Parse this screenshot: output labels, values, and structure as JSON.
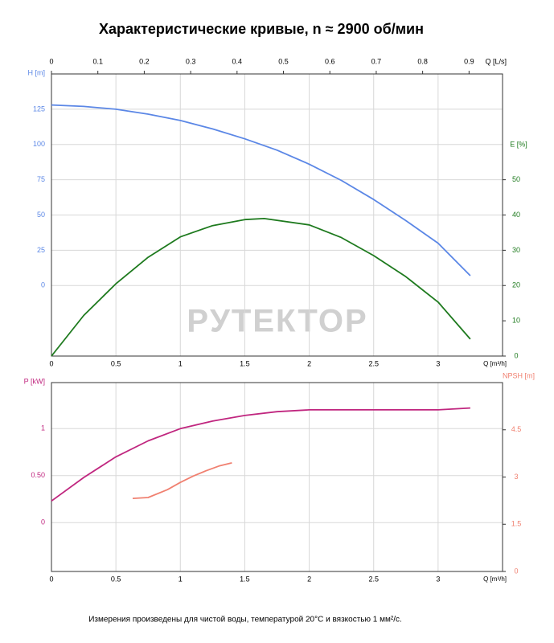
{
  "title": "Характеристические кривые, n ≈ 2900 об/мин",
  "watermark": "PУТЕКТОР",
  "footnote": "Измерения произведены для чистой воды, температурой 20°C и вязкостью 1 мм²/с.",
  "chart_data": [
    {
      "type": "line",
      "x_label": "Q [m³/h]",
      "xlim": [
        0,
        3.5
      ],
      "xticks": [
        0,
        0.5,
        1,
        1.5,
        2,
        2.5,
        3
      ],
      "x2_label": "Q [L/s]",
      "x2lim": [
        0,
        0.9722
      ],
      "x2ticks": [
        0,
        0.1,
        0.2,
        0.3,
        0.4,
        0.5,
        0.6,
        0.7,
        0.8,
        0.9
      ],
      "y_label": "H [m]",
      "ylim": [
        -50,
        150
      ],
      "yticks": [
        0,
        25,
        50,
        75,
        100,
        125
      ],
      "y2_label": "E [%]",
      "y2lim": [
        0,
        80
      ],
      "y2ticks": [
        0,
        10,
        20,
        30,
        40,
        50
      ],
      "grid": true,
      "series": [
        {
          "name": "H",
          "color": "#5b87e6",
          "axis": "y",
          "x": [
            0,
            0.25,
            0.5,
            0.75,
            1,
            1.25,
            1.5,
            1.75,
            2,
            2.25,
            2.5,
            2.75,
            3,
            3.25
          ],
          "values": [
            128,
            127,
            125,
            121.5,
            117,
            111,
            104,
            96,
            86,
            74.5,
            61,
            46,
            30,
            7
          ]
        },
        {
          "name": "E",
          "color": "#1e7a1e",
          "axis": "y2",
          "x": [
            0,
            0.25,
            0.5,
            0.75,
            1,
            1.25,
            1.5,
            1.65,
            2,
            2.25,
            2.5,
            2.75,
            3,
            3.25
          ],
          "values": [
            0,
            11.5,
            20.5,
            28,
            33.8,
            37,
            38.7,
            39,
            37.2,
            33.6,
            28.5,
            22.5,
            15.3,
            4.8
          ]
        }
      ]
    },
    {
      "type": "line",
      "x_label": "Q [m³/h]",
      "xlim": [
        0,
        3.5
      ],
      "xticks": [
        0,
        0.5,
        1,
        1.5,
        2,
        2.5,
        3
      ],
      "y_label": "P [kW]",
      "ylim": [
        -0.52,
        1.49
      ],
      "yticks": [
        0,
        {
          "value": 0.5,
          "label": "0.50"
        },
        1
      ],
      "y2_label": "NPSH [m]",
      "y2lim": [
        0,
        6
      ],
      "y2ticks": [
        0,
        1.5,
        3,
        4.5
      ],
      "grid": true,
      "series": [
        {
          "name": "P",
          "color": "#c0267f",
          "axis": "y",
          "x": [
            0,
            0.25,
            0.5,
            0.75,
            1,
            1.25,
            1.5,
            1.75,
            2,
            2.25,
            2.5,
            2.75,
            3,
            3.25
          ],
          "values": [
            0.23,
            0.48,
            0.7,
            0.87,
            1.0,
            1.08,
            1.14,
            1.18,
            1.2,
            1.2,
            1.2,
            1.2,
            1.2,
            1.22
          ]
        },
        {
          "name": "NPSH",
          "color": "#f08070",
          "axis": "y2",
          "x": [
            0.63,
            0.75,
            0.9,
            1.0,
            1.1,
            1.2,
            1.3,
            1.4
          ],
          "values": [
            2.32,
            2.35,
            2.6,
            2.83,
            3.03,
            3.2,
            3.35,
            3.45
          ]
        }
      ]
    }
  ]
}
